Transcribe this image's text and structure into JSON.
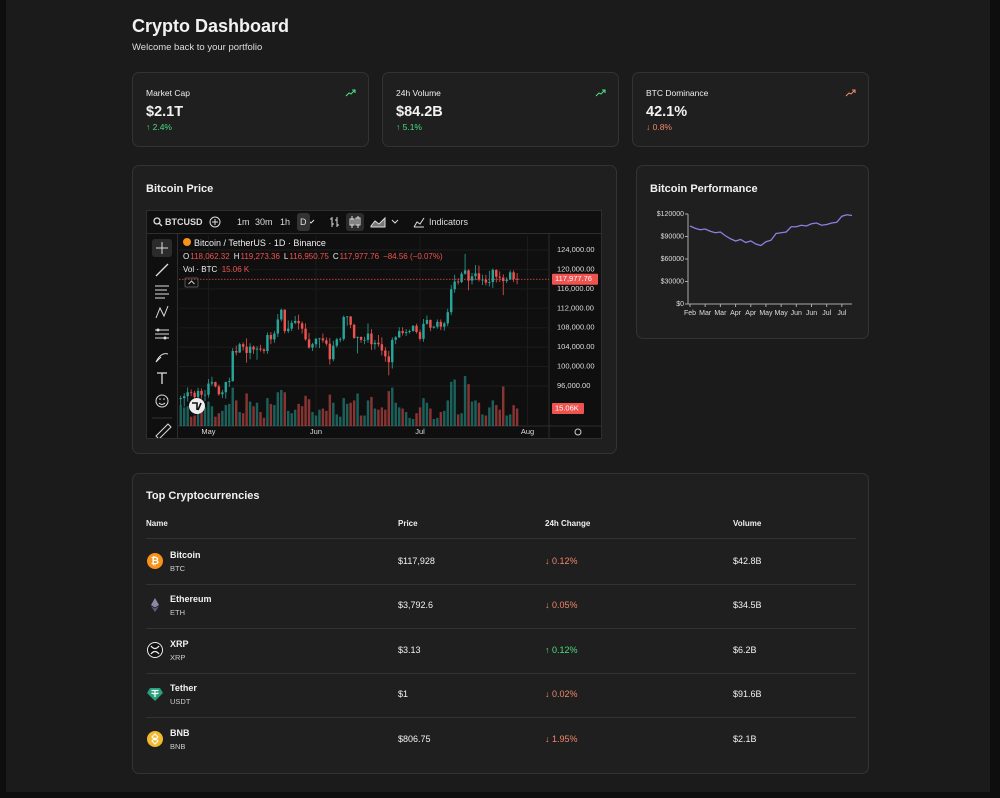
{
  "header": {
    "title": "Crypto Dashboard",
    "subtitle": "Welcome back to your portfolio"
  },
  "stats": [
    {
      "label": "Market Cap",
      "value": "$2.1T",
      "change": "↑ 2.4%",
      "color": "#4ade80"
    },
    {
      "label": "24h Volume",
      "value": "$84.2B",
      "change": "↑ 5.1%",
      "color": "#4ade80"
    },
    {
      "label": "BTC Dominance",
      "value": "42.1%",
      "change": "↓ 0.8%",
      "color": "#f0876a"
    }
  ],
  "chart_data": [
    {
      "type": "candlestick",
      "title": "Bitcoin Price",
      "symbol": "BTCUSD",
      "intervals": [
        "1m",
        "30m",
        "1h",
        "D"
      ],
      "indicators_label": "Indicators",
      "legend": {
        "name": "Bitcoin / TetherUS · 1D · Binance",
        "ohlc": [
          {
            "key": "O",
            "value": "118,062.32"
          },
          {
            "key": "H",
            "value": "119,273.36"
          },
          {
            "key": "L",
            "value": "116,950.75"
          },
          {
            "key": "C",
            "value": "117,977.76"
          }
        ],
        "change": "−84.56 (−0.07%)",
        "volume_name": "Vol · BTC",
        "volume": "15.06 K"
      },
      "up_color": "#26a69a",
      "down_color": "#ef5350",
      "candles": [
        [
          93300,
          94000,
          92000,
          93500,
          18
        ],
        [
          93500,
          94500,
          91800,
          93900,
          16
        ],
        [
          93900,
          95700,
          92800,
          94700,
          17
        ],
        [
          94700,
          95300,
          93900,
          94600,
          8
        ],
        [
          94600,
          95000,
          93100,
          93700,
          9
        ],
        [
          93700,
          95600,
          92900,
          95000,
          17
        ],
        [
          95000,
          95500,
          93400,
          94200,
          14
        ],
        [
          94200,
          95200,
          92900,
          94200,
          16
        ],
        [
          94200,
          97400,
          93600,
          96500,
          21
        ],
        [
          96500,
          97900,
          96000,
          96800,
          17
        ],
        [
          96800,
          96900,
          95700,
          95900,
          8
        ],
        [
          95900,
          96300,
          94000,
          94300,
          11
        ],
        [
          94300,
          95200,
          93500,
          94700,
          13
        ],
        [
          94700,
          96900,
          93400,
          96800,
          18
        ],
        [
          96800,
          97700,
          95800,
          97000,
          19
        ],
        [
          97000,
          103800,
          96900,
          103200,
          33
        ],
        [
          103200,
          104300,
          102300,
          102900,
          22
        ],
        [
          102900,
          104900,
          102800,
          104600,
          12
        ],
        [
          104600,
          105000,
          103300,
          104100,
          11
        ],
        [
          104100,
          105800,
          100800,
          102800,
          28
        ],
        [
          102800,
          104800,
          101500,
          104100,
          21
        ],
        [
          104100,
          104300,
          102600,
          103500,
          17
        ],
        [
          103500,
          104200,
          101400,
          103700,
          20
        ],
        [
          103700,
          104500,
          103100,
          103500,
          12
        ],
        [
          103500,
          103800,
          102700,
          103200,
          7
        ],
        [
          103200,
          107000,
          102600,
          106500,
          24
        ],
        [
          106500,
          107100,
          104600,
          105600,
          19
        ],
        [
          105600,
          107300,
          104900,
          106800,
          18
        ],
        [
          106800,
          110800,
          106100,
          109700,
          29
        ],
        [
          109700,
          111900,
          109300,
          111700,
          31
        ],
        [
          111700,
          111800,
          106800,
          107300,
          29
        ],
        [
          107300,
          109500,
          106900,
          107800,
          13
        ],
        [
          107800,
          109500,
          107300,
          109000,
          11
        ],
        [
          109000,
          110400,
          108700,
          109400,
          14
        ],
        [
          109400,
          110700,
          107600,
          108900,
          19
        ],
        [
          108900,
          109300,
          106800,
          107800,
          17
        ],
        [
          107800,
          108900,
          105300,
          105600,
          26
        ],
        [
          105600,
          106900,
          103700,
          103900,
          23
        ],
        [
          103900,
          104900,
          103200,
          104600,
          12
        ],
        [
          104600,
          105900,
          103900,
          105700,
          9
        ],
        [
          105700,
          105900,
          103800,
          105800,
          14
        ],
        [
          105800,
          106800,
          104900,
          105400,
          15
        ],
        [
          105400,
          106000,
          104300,
          104700,
          13
        ],
        [
          104700,
          105900,
          100400,
          101500,
          27
        ],
        [
          101500,
          105300,
          101100,
          104300,
          20
        ],
        [
          104300,
          105900,
          103900,
          105600,
          10
        ],
        [
          105600,
          106000,
          105000,
          105700,
          8
        ],
        [
          105700,
          110500,
          105300,
          110200,
          24
        ],
        [
          110200,
          110400,
          108400,
          110300,
          19
        ],
        [
          110300,
          110400,
          107900,
          108600,
          20
        ],
        [
          108600,
          108800,
          105700,
          105900,
          22
        ],
        [
          105900,
          106200,
          102700,
          106100,
          28
        ],
        [
          106100,
          106200,
          104900,
          105500,
          9
        ],
        [
          105500,
          106100,
          104600,
          105500,
          9
        ],
        [
          105500,
          108900,
          104900,
          106800,
          22
        ],
        [
          106800,
          107700,
          103400,
          104600,
          25
        ],
        [
          104600,
          105500,
          103500,
          104900,
          15
        ],
        [
          104900,
          106500,
          104100,
          104600,
          14
        ],
        [
          104600,
          106000,
          102300,
          103300,
          16
        ],
        [
          103300,
          104000,
          101000,
          102100,
          14
        ],
        [
          102100,
          103200,
          98200,
          100900,
          30
        ],
        [
          100900,
          106000,
          99600,
          105500,
          33
        ],
        [
          105500,
          106300,
          104600,
          106000,
          20
        ],
        [
          106000,
          108100,
          105900,
          107300,
          16
        ],
        [
          107300,
          108100,
          106400,
          106900,
          15
        ],
        [
          106900,
          107700,
          106300,
          107100,
          12
        ],
        [
          107100,
          107600,
          106800,
          107300,
          7
        ],
        [
          107300,
          108500,
          107200,
          108400,
          6
        ],
        [
          108400,
          108800,
          106800,
          107100,
          11
        ],
        [
          107100,
          107600,
          105300,
          105700,
          16
        ],
        [
          105700,
          109800,
          105100,
          108800,
          24
        ],
        [
          108800,
          110500,
          108600,
          109600,
          20
        ],
        [
          109600,
          109700,
          107300,
          108000,
          15
        ],
        [
          108000,
          108400,
          107800,
          108200,
          6
        ],
        [
          108200,
          109700,
          107800,
          109200,
          7
        ],
        [
          109200,
          109700,
          107500,
          108200,
          12
        ],
        [
          108200,
          109200,
          107400,
          108900,
          13
        ],
        [
          108900,
          111900,
          108300,
          111200,
          22
        ],
        [
          111200,
          116800,
          110600,
          115900,
          38
        ],
        [
          115900,
          118900,
          115200,
          117500,
          40
        ],
        [
          117500,
          118200,
          116900,
          117400,
          10
        ],
        [
          117400,
          119500,
          117200,
          119100,
          11
        ],
        [
          119100,
          123200,
          118900,
          119800,
          43
        ],
        [
          119800,
          120000,
          115700,
          117700,
          36
        ],
        [
          117700,
          119300,
          116900,
          118600,
          21
        ],
        [
          118600,
          120900,
          117800,
          119200,
          22
        ],
        [
          119200,
          120800,
          117500,
          117900,
          20
        ],
        [
          117900,
          118900,
          116800,
          117900,
          10
        ],
        [
          117900,
          118900,
          116700,
          117300,
          9
        ],
        [
          117300,
          119700,
          116500,
          117400,
          16
        ],
        [
          117400,
          120200,
          116200,
          119900,
          22
        ],
        [
          119900,
          120000,
          117300,
          118500,
          18
        ],
        [
          118500,
          119600,
          117400,
          118300,
          14
        ],
        [
          118300,
          119000,
          114700,
          117600,
          34
        ],
        [
          117600,
          118400,
          117200,
          117900,
          9
        ],
        [
          117900,
          119800,
          117800,
          119400,
          10
        ],
        [
          119400,
          119800,
          117400,
          118000,
          18
        ],
        [
          118062.32,
          119273.36,
          116950.75,
          117977.76,
          15.06
        ]
      ],
      "xlim": [
        -0.5,
        106.2
      ],
      "xticks": [
        {
          "value": 8,
          "label": "May"
        },
        {
          "value": 39,
          "label": "Jun"
        },
        {
          "value": 69,
          "label": "Jul"
        },
        {
          "value": 100,
          "label": "Aug"
        }
      ],
      "ylim": [
        87760,
        126880
      ],
      "yticks": [
        {
          "value": 96000,
          "label": "96,000.00"
        },
        {
          "value": 100000,
          "label": "100,000.00"
        },
        {
          "value": 104000,
          "label": "104,000.00"
        },
        {
          "value": 108000,
          "label": "108,000.00"
        },
        {
          "value": 112000,
          "label": "112,000.00"
        },
        {
          "value": 116000,
          "label": "116,000.00"
        },
        {
          "value": 120000,
          "label": "120,000.00"
        },
        {
          "value": 124000,
          "label": "124,000.00"
        }
      ],
      "last_price": {
        "value": 117977.76,
        "label": "117,977.76"
      },
      "last_volume": {
        "value": 15.06,
        "label": "15.06K"
      }
    },
    {
      "type": "line",
      "title": "Bitcoin Performance",
      "color": "#8b80e0",
      "categories": [
        "Feb",
        null,
        null,
        "Mar",
        null,
        null,
        "Mar",
        null,
        null,
        "Apr",
        null,
        null,
        "Apr",
        null,
        null,
        "May",
        null,
        null,
        "May",
        null,
        null,
        "Jun",
        null,
        null,
        "Jun",
        null,
        null,
        "Jul",
        null,
        null,
        "Jul",
        null,
        null
      ],
      "values": [
        104000,
        101000,
        99000,
        100000,
        97000,
        95000,
        96000,
        91000,
        87000,
        84000,
        86000,
        82000,
        84000,
        80000,
        78000,
        83000,
        85000,
        94000,
        95000,
        96000,
        103000,
        103000,
        105000,
        104000,
        107000,
        108000,
        105000,
        106000,
        108000,
        109000,
        117000,
        119000,
        118000
      ],
      "ylim": [
        0,
        120000
      ],
      "yticks": [
        {
          "value": 0,
          "label": "$0"
        },
        {
          "value": 30000,
          "label": "$30000"
        },
        {
          "value": 60000,
          "label": "$60000"
        },
        {
          "value": 90000,
          "label": "$90000"
        },
        {
          "value": 120000,
          "label": "$120000"
        }
      ]
    }
  ],
  "table": {
    "title": "Top Cryptocurrencies",
    "columns": [
      "Name",
      "Price",
      "24h Change",
      "Volume"
    ],
    "rows": [
      {
        "name": "Bitcoin",
        "symbol": "BTC",
        "price": "$117,928",
        "change": "↓ 0.12%",
        "change_color": "#f0876a",
        "volume": "$42.8B"
      },
      {
        "name": "Ethereum",
        "symbol": "ETH",
        "price": "$3,792.6",
        "change": "↓ 0.05%",
        "change_color": "#f0876a",
        "volume": "$34.5B"
      },
      {
        "name": "XRP",
        "symbol": "XRP",
        "price": "$3.13",
        "change": "↑ 0.12%",
        "change_color": "#4ade80",
        "volume": "$6.2B"
      },
      {
        "name": "Tether",
        "symbol": "USDT",
        "price": "$1",
        "change": "↓ 0.02%",
        "change_color": "#f0876a",
        "volume": "$91.6B"
      },
      {
        "name": "BNB",
        "symbol": "BNB",
        "price": "$806.75",
        "change": "↓ 1.95%",
        "change_color": "#f0876a",
        "volume": "$2.1B"
      }
    ]
  }
}
